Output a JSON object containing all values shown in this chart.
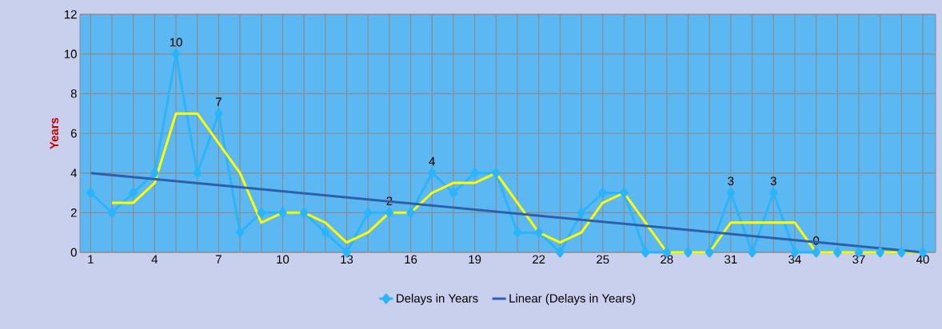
{
  "chart_data": {
    "type": "line",
    "ylabel": "Years",
    "x": [
      1,
      2,
      3,
      4,
      5,
      6,
      7,
      8,
      9,
      10,
      11,
      12,
      13,
      14,
      15,
      16,
      17,
      18,
      19,
      20,
      21,
      22,
      23,
      24,
      25,
      26,
      27,
      28,
      29,
      30,
      31,
      32,
      33,
      34,
      35,
      36,
      37,
      38,
      39,
      40
    ],
    "xlim": [
      0.5,
      40.6
    ],
    "xticks": [
      1,
      {
        "value": 2,
        "label": null
      },
      {
        "value": 3,
        "label": null
      },
      4,
      {
        "value": 5,
        "label": null
      },
      {
        "value": 6,
        "label": null
      },
      7,
      {
        "value": 8,
        "label": null
      },
      {
        "value": 9,
        "label": null
      },
      10,
      {
        "value": 11,
        "label": null
      },
      {
        "value": 12,
        "label": null
      },
      13,
      {
        "value": 14,
        "label": null
      },
      {
        "value": 15,
        "label": null
      },
      16,
      {
        "value": 17,
        "label": null
      },
      {
        "value": 18,
        "label": null
      },
      19,
      {
        "value": 20,
        "label": null
      },
      {
        "value": 21,
        "label": null
      },
      22,
      {
        "value": 23,
        "label": null
      },
      {
        "value": 24,
        "label": null
      },
      25,
      {
        "value": 26,
        "label": null
      },
      {
        "value": 27,
        "label": null
      },
      28,
      {
        "value": 29,
        "label": null
      },
      {
        "value": 30,
        "label": null
      },
      31,
      {
        "value": 32,
        "label": null
      },
      {
        "value": 33,
        "label": null
      },
      34,
      {
        "value": 35,
        "label": null
      },
      {
        "value": 36,
        "label": null
      },
      37,
      {
        "value": 38,
        "label": null
      },
      {
        "value": 39,
        "label": null
      },
      40
    ],
    "ylim": [
      0,
      12
    ],
    "yticks": [
      0,
      2,
      4,
      6,
      8,
      10,
      12
    ],
    "grid": true,
    "legend": "bottom",
    "marker": "diamond",
    "series": [
      {
        "name": "Delays in Years",
        "color": "#2db4f8",
        "values": [
          3,
          2,
          3,
          4,
          10,
          4,
          7,
          1,
          2,
          2,
          2,
          1,
          0,
          2,
          2,
          2,
          4,
          3,
          4,
          4,
          1,
          1,
          0,
          2,
          3,
          3,
          0,
          0,
          0,
          0,
          3,
          0,
          3,
          0,
          0,
          0,
          0,
          0,
          0,
          0
        ],
        "value_labels": [
          null,
          null,
          null,
          null,
          "10",
          null,
          "7",
          null,
          null,
          null,
          null,
          null,
          null,
          null,
          "2",
          null,
          "4",
          null,
          null,
          null,
          null,
          null,
          null,
          null,
          null,
          null,
          null,
          null,
          null,
          null,
          "3",
          null,
          "3",
          null,
          "0",
          null,
          null,
          null,
          null,
          null
        ]
      },
      {
        "color": "#ffff00",
        "marker": "none",
        "values": [
          null,
          2.5,
          2.5,
          3.5,
          7,
          7,
          5.5,
          4,
          1.5,
          2,
          2,
          1.5,
          0.5,
          1,
          2,
          2,
          3,
          3.5,
          3.5,
          4,
          2.5,
          1,
          0.5,
          1,
          2.5,
          3,
          1.5,
          0,
          0,
          0,
          1.5,
          1.5,
          1.5,
          1.5,
          0,
          0,
          0,
          0,
          0,
          0
        ]
      },
      {
        "name": "Linear (Delays in Years)",
        "color": "#2e5faa",
        "marker": "none",
        "x": [
          1,
          40
        ],
        "values": [
          4,
          0
        ]
      }
    ]
  }
}
